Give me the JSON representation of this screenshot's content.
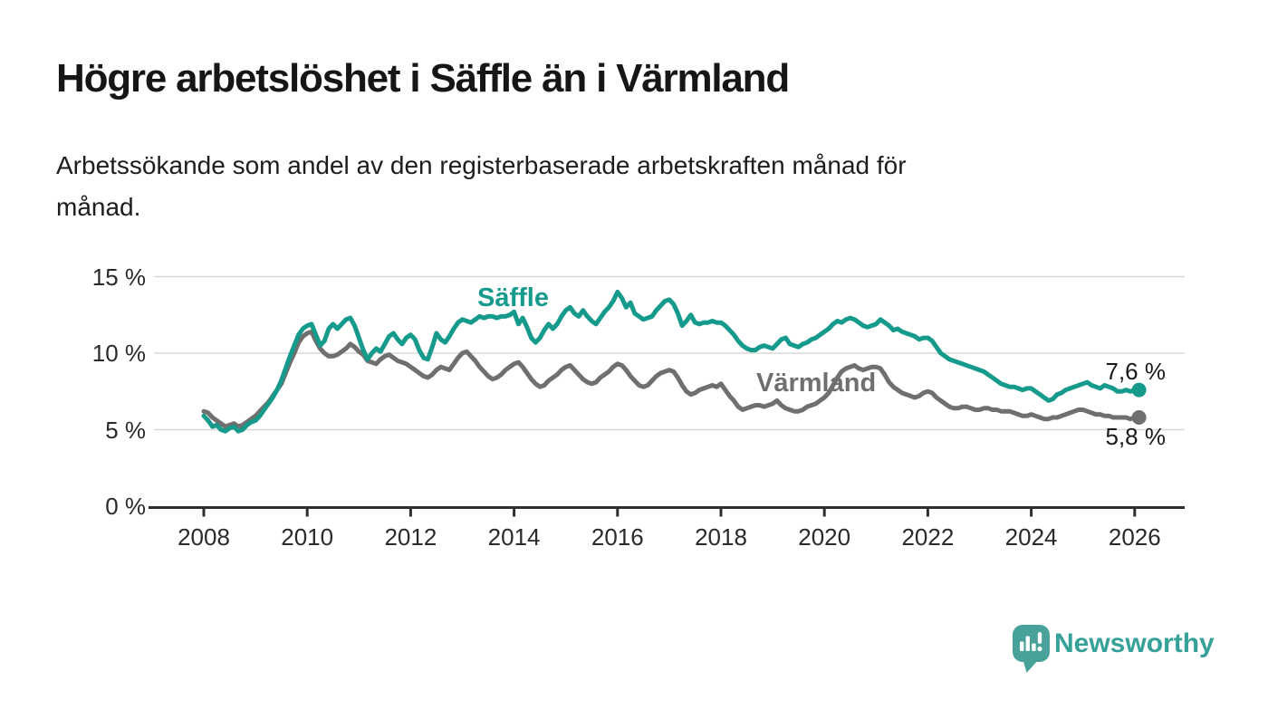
{
  "header": {
    "title": "Högre arbetslöshet i Säffle än i Värmland",
    "subtitle_lines": [
      "Arbetssökande som andel av den registerbaserade arbetskraften månad för",
      "månad."
    ]
  },
  "colors": {
    "saffle": "#169a8c",
    "varmland": "#6f6f6f",
    "grid": "#d8d8d8",
    "axis": "#2e2e2e",
    "tick_text": "#2a2a2a",
    "logo": "#48a29a"
  },
  "chart_data": {
    "type": "line",
    "title": "Högre arbetslöshet i Säffle än i Värmland",
    "subtitle": "Arbetssökande som andel av den registerbaserade arbetskraften månad för månad.",
    "unit": "%",
    "x_start_year": 2008,
    "x_interval": "monthly",
    "x_end_label": "Feb 2026",
    "ylim": [
      0,
      16.5
    ],
    "grid": true,
    "y_ticks": [
      {
        "value": 15,
        "label": "15 %"
      },
      {
        "value": 10,
        "label": "10 %"
      },
      {
        "value": 5,
        "label": "5 %"
      },
      {
        "value": 0,
        "label": "0 %"
      }
    ],
    "x_ticks": [
      {
        "year": 2008,
        "label": "2008"
      },
      {
        "year": 2010,
        "label": "2010"
      },
      {
        "year": 2012,
        "label": "2012"
      },
      {
        "year": 2014,
        "label": "2014"
      },
      {
        "year": 2016,
        "label": "2016"
      },
      {
        "year": 2018,
        "label": "2018"
      },
      {
        "year": 2020,
        "label": "2020"
      },
      {
        "year": 2022,
        "label": "2022"
      },
      {
        "year": 2024,
        "label": "2024"
      },
      {
        "year": 2026,
        "label": "2026"
      }
    ],
    "series": [
      {
        "name": "Säffle",
        "color": "#169a8c",
        "end_label": "7,6 %",
        "end_value": 7.6,
        "values": [
          5.9,
          5.6,
          5.2,
          5.3,
          5.0,
          4.9,
          5.1,
          5.2,
          4.9,
          5.0,
          5.3,
          5.5,
          5.6,
          5.9,
          6.3,
          6.7,
          7.1,
          7.6,
          8.2,
          9.0,
          9.8,
          10.5,
          11.2,
          11.6,
          11.8,
          11.9,
          11.2,
          10.5,
          10.8,
          11.6,
          11.9,
          11.6,
          11.9,
          12.2,
          12.3,
          11.8,
          11.0,
          10.2,
          9.6,
          10.0,
          10.3,
          10.1,
          10.6,
          11.1,
          11.3,
          10.9,
          10.6,
          11.0,
          11.2,
          10.9,
          10.2,
          9.7,
          9.6,
          10.4,
          11.3,
          10.9,
          10.7,
          11.1,
          11.6,
          12.0,
          12.2,
          12.1,
          12.0,
          12.2,
          12.4,
          12.3,
          12.4,
          12.4,
          12.3,
          12.4,
          12.4,
          12.5,
          12.7,
          11.9,
          12.3,
          11.7,
          11.0,
          10.7,
          11.0,
          11.5,
          11.9,
          11.6,
          11.9,
          12.4,
          12.8,
          13.0,
          12.6,
          12.4,
          12.8,
          12.4,
          12.1,
          11.9,
          12.3,
          12.7,
          13.0,
          13.4,
          14.0,
          13.6,
          13.0,
          13.3,
          12.6,
          12.4,
          12.2,
          12.3,
          12.4,
          12.8,
          13.1,
          13.4,
          13.5,
          13.2,
          12.6,
          11.8,
          12.1,
          12.5,
          12.0,
          11.9,
          12.0,
          12.0,
          12.1,
          12.0,
          12.0,
          11.8,
          11.5,
          11.2,
          10.8,
          10.5,
          10.3,
          10.2,
          10.2,
          10.4,
          10.5,
          10.4,
          10.3,
          10.6,
          10.9,
          11.0,
          10.6,
          10.5,
          10.4,
          10.6,
          10.7,
          10.9,
          11.0,
          11.2,
          11.4,
          11.6,
          11.9,
          12.1,
          12.0,
          12.2,
          12.3,
          12.2,
          12.0,
          11.8,
          11.7,
          11.8,
          11.9,
          12.2,
          12.0,
          11.8,
          11.5,
          11.6,
          11.4,
          11.3,
          11.2,
          11.1,
          10.9,
          11.0,
          11.0,
          10.8,
          10.4,
          10.0,
          9.8,
          9.6,
          9.5,
          9.4,
          9.3,
          9.2,
          9.1,
          9.0,
          8.9,
          8.8,
          8.6,
          8.4,
          8.2,
          8.0,
          7.9,
          7.8,
          7.8,
          7.7,
          7.6,
          7.7,
          7.7,
          7.5,
          7.3,
          7.1,
          6.9,
          7.0,
          7.3,
          7.4,
          7.6,
          7.7,
          7.8,
          7.9,
          8.0,
          8.1,
          7.9,
          7.8,
          7.7,
          7.9,
          7.8,
          7.7,
          7.5,
          7.5,
          7.6,
          7.5,
          7.6,
          7.6
        ]
      },
      {
        "name": "Värmland",
        "color": "#6f6f6f",
        "end_label": "5,8 %",
        "end_value": 5.8,
        "values": [
          6.2,
          6.1,
          5.8,
          5.6,
          5.4,
          5.2,
          5.3,
          5.4,
          5.2,
          5.3,
          5.5,
          5.7,
          5.9,
          6.2,
          6.5,
          6.8,
          7.2,
          7.6,
          8.0,
          8.7,
          9.4,
          10.0,
          10.7,
          11.1,
          11.3,
          11.4,
          10.8,
          10.3,
          10.0,
          9.8,
          9.8,
          9.9,
          10.1,
          10.3,
          10.6,
          10.4,
          10.1,
          9.9,
          9.5,
          9.4,
          9.3,
          9.6,
          9.8,
          9.9,
          9.7,
          9.5,
          9.4,
          9.3,
          9.1,
          8.9,
          8.7,
          8.5,
          8.4,
          8.6,
          8.9,
          9.1,
          9.0,
          8.9,
          9.3,
          9.7,
          10.0,
          10.1,
          9.8,
          9.5,
          9.1,
          8.8,
          8.5,
          8.3,
          8.4,
          8.6,
          8.9,
          9.1,
          9.3,
          9.4,
          9.1,
          8.7,
          8.3,
          8.0,
          7.8,
          7.9,
          8.2,
          8.4,
          8.6,
          8.9,
          9.1,
          9.2,
          8.9,
          8.6,
          8.3,
          8.1,
          8.0,
          8.1,
          8.4,
          8.6,
          8.8,
          9.1,
          9.3,
          9.2,
          8.9,
          8.5,
          8.2,
          7.9,
          7.8,
          7.9,
          8.2,
          8.5,
          8.7,
          8.8,
          8.9,
          8.8,
          8.4,
          7.9,
          7.5,
          7.3,
          7.4,
          7.6,
          7.7,
          7.8,
          7.9,
          7.8,
          8.0,
          7.6,
          7.2,
          6.9,
          6.5,
          6.3,
          6.4,
          6.5,
          6.6,
          6.6,
          6.5,
          6.6,
          6.7,
          6.9,
          6.6,
          6.4,
          6.3,
          6.2,
          6.2,
          6.3,
          6.5,
          6.6,
          6.7,
          6.9,
          7.1,
          7.4,
          7.9,
          8.4,
          8.8,
          9.0,
          9.1,
          9.2,
          9.0,
          8.9,
          9.0,
          9.1,
          9.1,
          9.0,
          8.6,
          8.1,
          7.8,
          7.6,
          7.4,
          7.3,
          7.2,
          7.1,
          7.2,
          7.4,
          7.5,
          7.4,
          7.1,
          6.9,
          6.7,
          6.5,
          6.4,
          6.4,
          6.5,
          6.5,
          6.4,
          6.3,
          6.3,
          6.4,
          6.4,
          6.3,
          6.3,
          6.2,
          6.2,
          6.2,
          6.1,
          6.0,
          5.9,
          5.9,
          6.0,
          5.9,
          5.8,
          5.7,
          5.7,
          5.8,
          5.8,
          5.9,
          6.0,
          6.1,
          6.2,
          6.3,
          6.3,
          6.2,
          6.1,
          6.0,
          6.0,
          5.9,
          5.9,
          5.8,
          5.8,
          5.8,
          5.8,
          5.7,
          5.8,
          5.8
        ]
      }
    ]
  },
  "logo": {
    "text": "Newsworthy",
    "icon": "bar-chart-speech-bubble-icon"
  }
}
